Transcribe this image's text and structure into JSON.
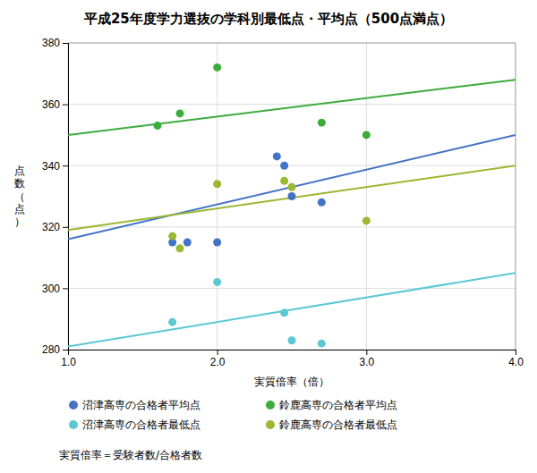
{
  "chart_data": {
    "type": "scatter",
    "title": "平成25年度学力選抜の学科別最低点・平均点（500点満点）",
    "x_label": "実質倍率（倍）",
    "y_label": "点\n数\n（\n点\n）",
    "xlim": [
      1.0,
      4.0
    ],
    "ylim": [
      280,
      380
    ],
    "xticks": [
      {
        "value": 1.0,
        "label": "1.0"
      },
      {
        "value": 2.0,
        "label": "2.0"
      },
      {
        "value": 3.0,
        "label": "3.0"
      },
      {
        "value": 4.0,
        "label": "4.0"
      }
    ],
    "yticks": [
      280,
      300,
      320,
      340,
      360,
      380
    ],
    "grid": true,
    "legend": "bottom",
    "series": [
      {
        "name": "沼津高専の合格者平均点",
        "color": "#4472C4",
        "x": [
          1.7,
          1.8,
          2.0,
          2.4,
          2.45,
          2.5,
          2.7
        ],
        "values": [
          315,
          315,
          315,
          343,
          340,
          330,
          328
        ],
        "trendline": {
          "x": [
            1.0,
            4.0
          ],
          "values": [
            316,
            350
          ]
        }
      },
      {
        "name": "沼津高専の合格者最低点",
        "color": "#5BC8D2",
        "x": [
          1.7,
          2.0,
          2.45,
          2.5,
          2.7
        ],
        "values": [
          289,
          302,
          292,
          283,
          282
        ],
        "trendline": {
          "x": [
            1.0,
            4.0
          ],
          "values": [
            281,
            305
          ]
        }
      },
      {
        "name": "鈴鹿高専の合格者平均点",
        "color": "#3CAC3C",
        "x": [
          1.6,
          1.75,
          2.0,
          2.7,
          3.0
        ],
        "values": [
          353,
          357,
          372,
          354,
          350
        ],
        "trendline": {
          "x": [
            1.0,
            4.0
          ],
          "values": [
            350,
            368
          ]
        }
      },
      {
        "name": "鈴鹿高専の合格者最低点",
        "color": "#9AB832",
        "x": [
          1.7,
          1.75,
          2.0,
          2.45,
          2.5,
          3.0
        ],
        "values": [
          317,
          313,
          334,
          335,
          333,
          322
        ],
        "trendline": {
          "x": [
            1.0,
            4.0
          ],
          "values": [
            319,
            340
          ]
        }
      }
    ],
    "annotations": [
      "実質倍率＝受験者数/合格者数"
    ]
  }
}
